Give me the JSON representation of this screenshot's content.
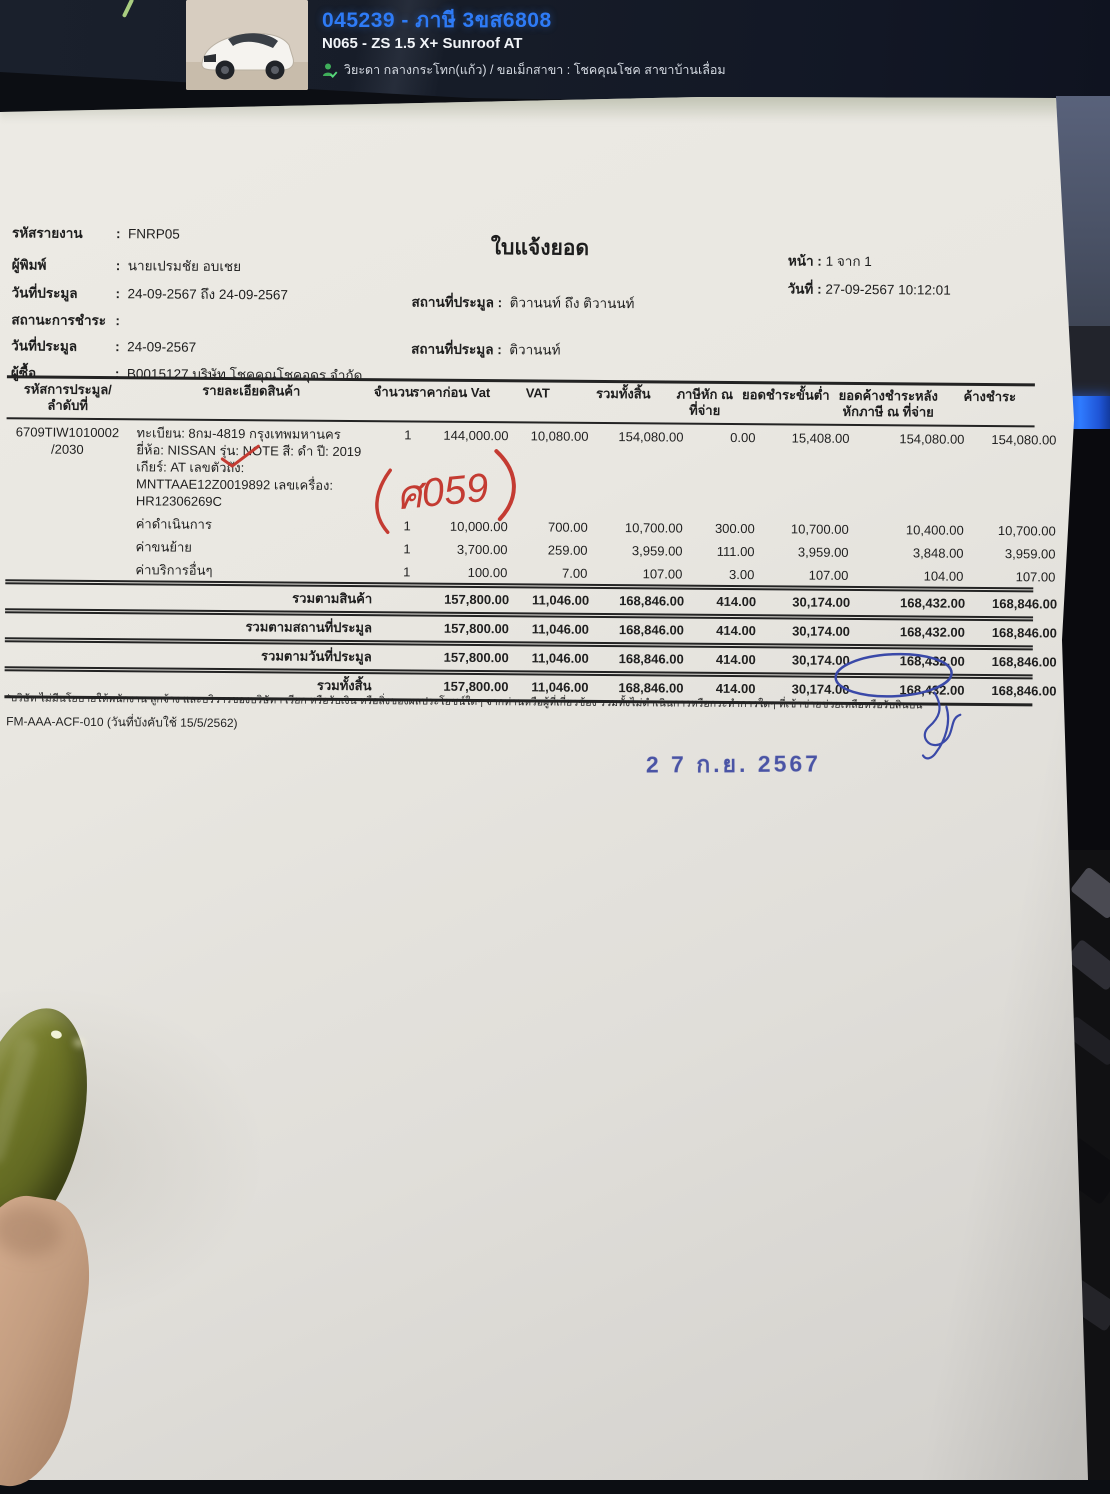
{
  "colon": ":",
  "screen_bar": {
    "listing_id": "045239 - ภาษี 3ขส6808",
    "model": "N065 - ZS 1.5 X+ Sunroof AT",
    "agent_line": "วิยะดา กลางกระโทก(แก้ว) / ขอเม็กสาขา : โชคคุณโชค สาขาบ้านเลื่อม",
    "accent_blue": "#2e7bf6",
    "agent_green": "#3fae5a"
  },
  "document": {
    "title": "ใบแจ้งยอด",
    "meta_left": [
      {
        "label": "รหัสรายงาน",
        "value": "FNRP05"
      },
      {
        "label": "ผู้พิมพ์",
        "value": "นายเปรมชัย  อบเชย"
      },
      {
        "label": "วันที่ประมูล",
        "value": "24-09-2567 ถึง 24-09-2567"
      },
      {
        "label": "สถานะการชำระ",
        "value": ""
      },
      {
        "label": "วันที่ประมูล",
        "value": "24-09-2567"
      },
      {
        "label": "ผู้ซื้อ",
        "value": "B0015127 บริษัท โชคคุณโชคอุดร  จำกัด"
      }
    ],
    "meta_center": [
      {
        "label": "สถานที่ประมูล :",
        "value": "ติวานนท์ ถึง ติวานนท์"
      },
      {
        "label": "สถานที่ประมูล :",
        "value": "ติวานนท์"
      }
    ],
    "meta_right": [
      {
        "label": "หน้า",
        "value": "1 จาก 1"
      },
      {
        "label": "วันที่",
        "value": "27-09-2567 10:12:01"
      }
    ],
    "table": {
      "headers": {
        "c0": [
          "รหัสการประมูล/",
          "ลำดับที่"
        ],
        "c1": [
          "รายละเอียดสินค้า"
        ],
        "c2": [
          "จำนวน"
        ],
        "c3": [
          "ราคาก่อน Vat"
        ],
        "c4": [
          "VAT"
        ],
        "c5": [
          "รวมทั้งสิ้น"
        ],
        "c6": [
          "ภาษีหัก ณ",
          "ที่จ่าย"
        ],
        "c7": [
          "ยอดชำระขั้นต่ำ"
        ],
        "c8": [
          "ยอดค้างชำระหลัง",
          "หักภาษี ณ ที่จ่าย"
        ],
        "c9": [
          "ค้างชำระ"
        ]
      },
      "rows": [
        {
          "id_lines": [
            "6709TIW1010002",
            "/2030"
          ],
          "desc_lines": [
            "ทะเบียน: 8กม-4819 กรุงเทพมหานคร",
            "ยี่ห้อ: NISSAN รุ่น: NOTE  สี: ดำ  ปี: 2019",
            "เกียร์: AT เลขตัวถัง:",
            "MNTTAAE12Z0019892 เลขเครื่อง:",
            "HR12306269C"
          ],
          "qty": "1",
          "price": "144,000.00",
          "vat": "10,080.00",
          "total": "154,080.00",
          "wht": "0.00",
          "min_pay": "15,408.00",
          "after": "154,080.00",
          "due": "154,080.00"
        },
        {
          "id_lines": [],
          "desc_lines": [
            "ค่าดำเนินการ"
          ],
          "qty": "1",
          "price": "10,000.00",
          "vat": "700.00",
          "total": "10,700.00",
          "wht": "300.00",
          "min_pay": "10,700.00",
          "after": "10,400.00",
          "due": "10,700.00"
        },
        {
          "id_lines": [],
          "desc_lines": [
            "ค่าขนย้าย"
          ],
          "qty": "1",
          "price": "3,700.00",
          "vat": "259.00",
          "total": "3,959.00",
          "wht": "111.00",
          "min_pay": "3,959.00",
          "after": "3,848.00",
          "due": "3,959.00"
        },
        {
          "id_lines": [],
          "desc_lines": [
            "ค่าบริการอื่นๆ"
          ],
          "qty": "1",
          "price": "100.00",
          "vat": "7.00",
          "total": "107.00",
          "wht": "3.00",
          "min_pay": "107.00",
          "after": "104.00",
          "due": "107.00"
        }
      ],
      "totals": [
        {
          "label": "รวมตามสินค้า",
          "price": "157,800.00",
          "vat": "11,046.00",
          "total": "168,846.00",
          "wht": "414.00",
          "min_pay": "30,174.00",
          "after": "168,432.00",
          "due": "168,846.00"
        },
        {
          "label": "รวมตามสถานที่ประมูล",
          "price": "157,800.00",
          "vat": "11,046.00",
          "total": "168,846.00",
          "wht": "414.00",
          "min_pay": "30,174.00",
          "after": "168,432.00",
          "due": "168,846.00"
        },
        {
          "label": "รวมตามวันที่ประมูล",
          "price": "157,800.00",
          "vat": "11,046.00",
          "total": "168,846.00",
          "wht": "414.00",
          "min_pay": "30,174.00",
          "after": "168,432.00",
          "due": "168,846.00"
        },
        {
          "label": "รวมทั้งสิ้น",
          "price": "157,800.00",
          "vat": "11,046.00",
          "total": "168,846.00",
          "wht": "414.00",
          "min_pay": "30,174.00",
          "after": "168,432.00",
          "due": "168,846.00"
        }
      ]
    },
    "footnote": "*บริษัท ไม่มีนโยบายให้พนักงาน ลูกจ้าง และบริวารของบริษัทฯ เรียก หรือรับเงิน หรือสิ่งของผลประโยชน์ใดๆ จากท่านหรือผู้ที่เกี่ยวข้อง รวมทั้งไม่ดำเนินการหรือกระทำการใดๆ ที่เข้าข่ายช่วยเหลือหรือรับสินบน",
    "form_code": "FM-AAA-ACF-010 (วันที่บังคับใช้ 15/5/2562)",
    "stamp_date": "2 7 ก.ย. 2567",
    "handwritten_note": "ศ059",
    "ink_blue": "#35419e",
    "ink_red": "#c43b32"
  }
}
